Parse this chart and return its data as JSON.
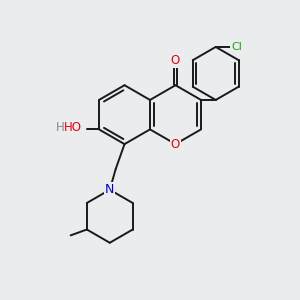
{
  "background_color": "#eaeced",
  "bond_color": "#1a1a1a",
  "bond_width": 1.4,
  "atom_colors": {
    "O": "#e8000d",
    "N": "#0000cc",
    "Cl": "#1aaa00",
    "C": "#1a1a1a"
  }
}
